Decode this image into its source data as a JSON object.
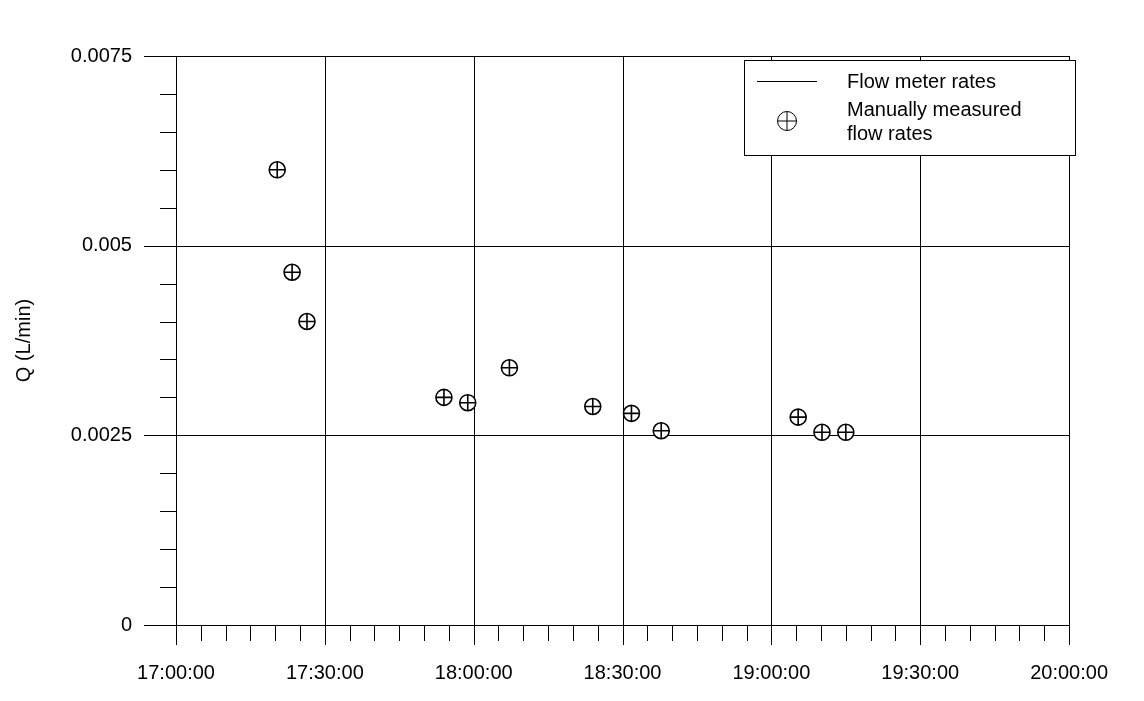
{
  "chart_data": {
    "type": "scatter",
    "ylabel": "Q (L/min)",
    "x": [
      17.34,
      17.39,
      17.44,
      17.9,
      17.98,
      18.12,
      18.4,
      18.53,
      18.63,
      19.09,
      19.17,
      19.25
    ],
    "series": [
      {
        "name": "Flow meter rates",
        "type": "line",
        "color": "#000000",
        "values": [
          null,
          null,
          null,
          null,
          null,
          null,
          null,
          null,
          null,
          null,
          null,
          null
        ]
      },
      {
        "name": "Manually measured flow rates",
        "color": "#000000",
        "values": [
          0.006,
          0.00465,
          0.004,
          0.003,
          0.00293,
          0.00339,
          0.00288,
          0.00279,
          0.00256,
          0.00274,
          0.00254,
          0.00254
        ]
      }
    ],
    "xlim": [
      17,
      20
    ],
    "xticks": [
      {
        "value": 17,
        "label": "17:00:00"
      },
      {
        "value": 17.0833,
        "label": null
      },
      {
        "value": 17.1667,
        "label": null
      },
      {
        "value": 17.25,
        "label": null
      },
      {
        "value": 17.3333,
        "label": null
      },
      {
        "value": 17.4167,
        "label": null
      },
      {
        "value": 17.5,
        "label": "17:30:00"
      },
      {
        "value": 17.5833,
        "label": null
      },
      {
        "value": 17.6667,
        "label": null
      },
      {
        "value": 17.75,
        "label": null
      },
      {
        "value": 17.8333,
        "label": null
      },
      {
        "value": 17.9167,
        "label": null
      },
      {
        "value": 18,
        "label": "18:00:00"
      },
      {
        "value": 18.0833,
        "label": null
      },
      {
        "value": 18.1667,
        "label": null
      },
      {
        "value": 18.25,
        "label": null
      },
      {
        "value": 18.3333,
        "label": null
      },
      {
        "value": 18.4167,
        "label": null
      },
      {
        "value": 18.5,
        "label": "18:30:00"
      },
      {
        "value": 18.5833,
        "label": null
      },
      {
        "value": 18.6667,
        "label": null
      },
      {
        "value": 18.75,
        "label": null
      },
      {
        "value": 18.8333,
        "label": null
      },
      {
        "value": 18.9167,
        "label": null
      },
      {
        "value": 19,
        "label": "19:00:00"
      },
      {
        "value": 19.0833,
        "label": null
      },
      {
        "value": 19.1667,
        "label": null
      },
      {
        "value": 19.25,
        "label": null
      },
      {
        "value": 19.3333,
        "label": null
      },
      {
        "value": 19.4167,
        "label": null
      },
      {
        "value": 19.5,
        "label": "19:30:00"
      },
      {
        "value": 19.5833,
        "label": null
      },
      {
        "value": 19.6667,
        "label": null
      },
      {
        "value": 19.75,
        "label": null
      },
      {
        "value": 19.8333,
        "label": null
      },
      {
        "value": 19.9167,
        "label": null
      },
      {
        "value": 20,
        "label": "20:00:00"
      }
    ],
    "ylim": [
      0,
      0.0075
    ],
    "yticks": [
      0,
      {
        "value": 0.0005,
        "label": null
      },
      {
        "value": 0.001,
        "label": null
      },
      {
        "value": 0.0015,
        "label": null
      },
      {
        "value": 0.002,
        "label": null
      },
      0.0025,
      {
        "value": 0.003,
        "label": null
      },
      {
        "value": 0.0035,
        "label": null
      },
      {
        "value": 0.004,
        "label": null
      },
      {
        "value": 0.0045,
        "label": null
      },
      0.005,
      {
        "value": 0.0055,
        "label": null
      },
      {
        "value": 0.006,
        "label": null
      },
      {
        "value": 0.0065,
        "label": null
      },
      {
        "value": 0.007,
        "label": null
      },
      0.0075
    ],
    "grid": true,
    "legend": "top right",
    "marker": "circle",
    "line_style": "solid"
  }
}
